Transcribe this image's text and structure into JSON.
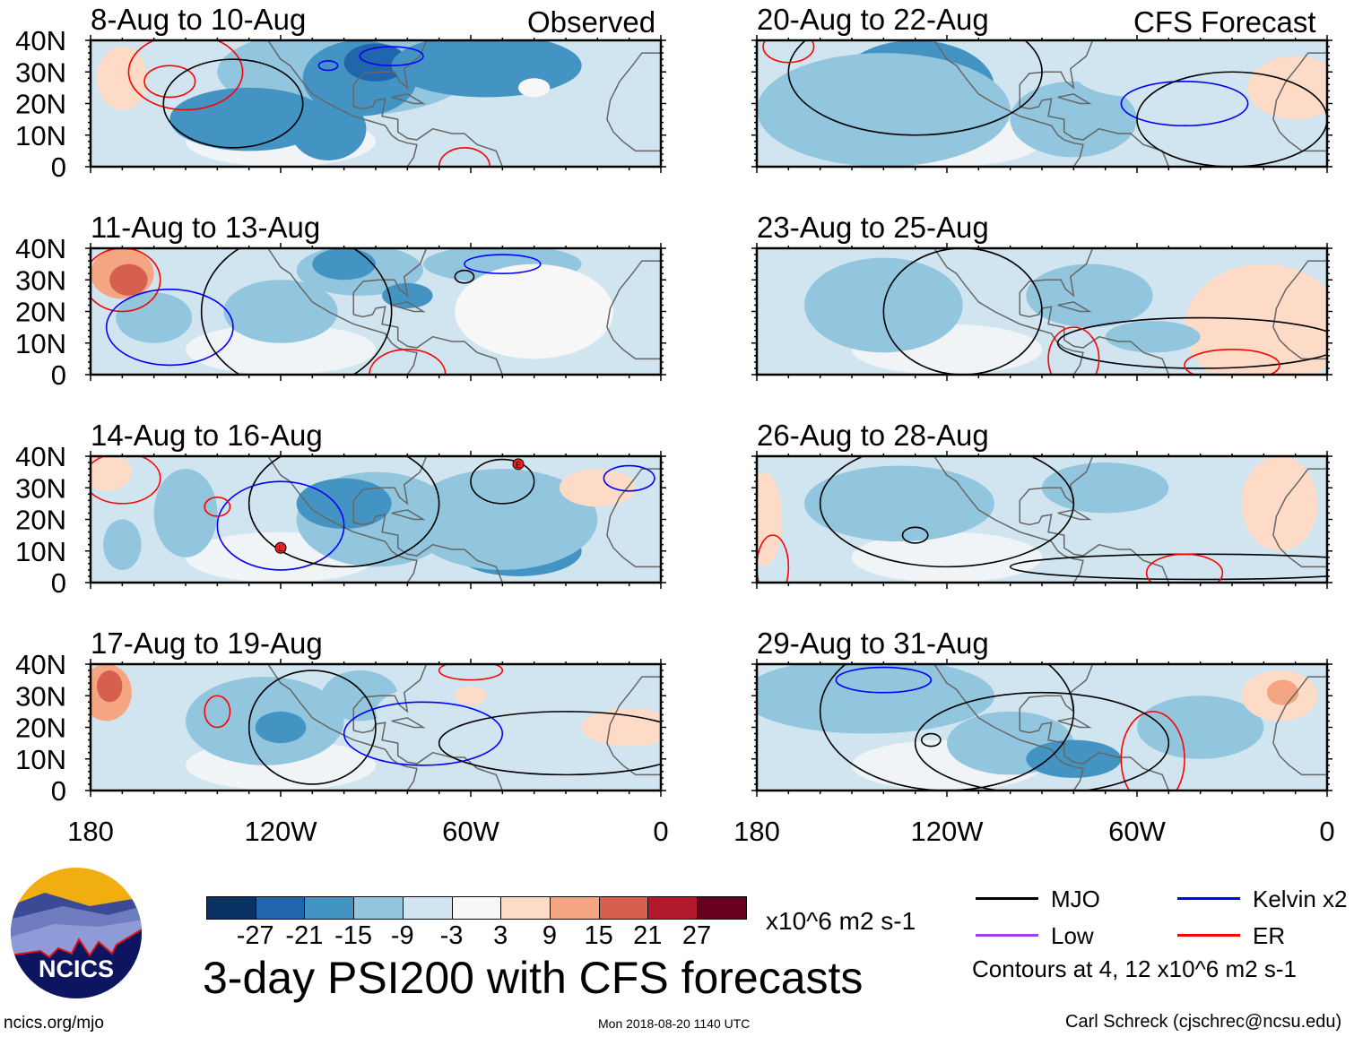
{
  "figure_title": "3-day PSI200 with CFS forecasts",
  "observed_label": "Observed",
  "forecast_label": "CFS Forecast",
  "panels_left": [
    "8-Aug to 10-Aug",
    "11-Aug to 13-Aug",
    "14-Aug to 16-Aug",
    "17-Aug to 19-Aug"
  ],
  "panels_right": [
    "20-Aug to 22-Aug",
    "23-Aug to 25-Aug",
    "26-Aug to 28-Aug",
    "29-Aug to 31-Aug"
  ],
  "lat_ticks": [
    "40N",
    "30N",
    "20N",
    "10N",
    "0"
  ],
  "lon_ticks": [
    "180",
    "120W",
    "60W",
    "0"
  ],
  "colorbar": {
    "colors": [
      "#0a3263",
      "#2166ac",
      "#4393c3",
      "#92c5de",
      "#d1e5f0",
      "#f7f7f7",
      "#fddbc7",
      "#f4a582",
      "#d6604d",
      "#b2182b",
      "#67001f"
    ],
    "labels": [
      "-27",
      "-21",
      "-15",
      "-9",
      "-3",
      "3",
      "9",
      "15",
      "21",
      "27"
    ],
    "units": "x10^6 m2 s-1"
  },
  "legend": {
    "items": [
      {
        "label": "MJO",
        "color": "#000000"
      },
      {
        "label": "Kelvin x2",
        "color": "#0000ff"
      },
      {
        "label": "Low",
        "color": "#a040f0"
      },
      {
        "label": "ER",
        "color": "#ff0000"
      }
    ],
    "note": "Contours at 4, 12 x10^6 m2 s-1"
  },
  "logo_text": "NCICS",
  "url": "ncics.org/mjo",
  "timestamp": "Mon 2018-08-20 1140 UTC",
  "credit": "Carl Schreck (cjschrec@ncsu.edu)",
  "markers": [
    "L",
    "E"
  ]
}
